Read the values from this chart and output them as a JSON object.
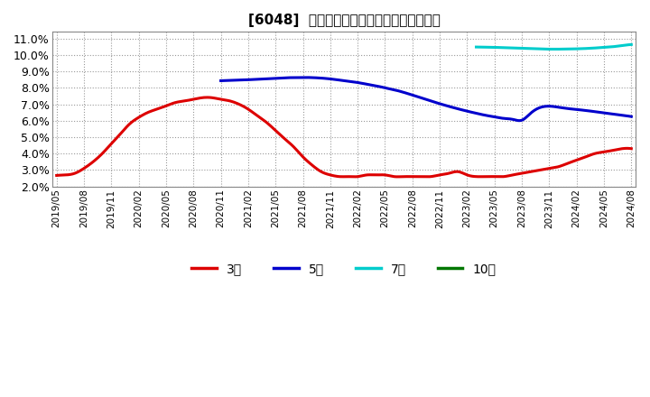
{
  "title": "[6048]  経常利益マージンの標準偏差の推移",
  "ylim": [
    0.02,
    0.114
  ],
  "yticks": [
    0.02,
    0.03,
    0.04,
    0.05,
    0.06,
    0.07,
    0.08,
    0.09,
    0.1,
    0.11
  ],
  "ytick_labels": [
    "2.0%",
    "3.0%",
    "4.0%",
    "5.0%",
    "6.0%",
    "7.0%",
    "8.0%",
    "9.0%",
    "10.0%",
    "11.0%"
  ],
  "background_color": "#ffffff",
  "plot_bg_color": "#ffffff",
  "grid_color": "#aaaaaa",
  "series": {
    "3year": {
      "color": "#dd0000",
      "label": "3年",
      "x": [
        0,
        1,
        2,
        3,
        4,
        5,
        6,
        7,
        8,
        9,
        10,
        11,
        12,
        13,
        14,
        15,
        16,
        17,
        18,
        19,
        20,
        21,
        22,
        23,
        24,
        25,
        26,
        27,
        28,
        29,
        30,
        31,
        32,
        33,
        34,
        35,
        36,
        37,
        38,
        39,
        40,
        41,
        42,
        43,
        44,
        45,
        46,
        47,
        48,
        49,
        50,
        51,
        52,
        53,
        54,
        55,
        56,
        57,
        58,
        59,
        60,
        61,
        62,
        63
      ],
      "y": [
        0.0267,
        0.027,
        0.028,
        0.031,
        0.035,
        0.04,
        0.046,
        0.052,
        0.058,
        0.062,
        0.065,
        0.067,
        0.069,
        0.071,
        0.072,
        0.073,
        0.074,
        0.074,
        0.073,
        0.072,
        0.07,
        0.067,
        0.063,
        0.059,
        0.054,
        0.049,
        0.044,
        0.038,
        0.033,
        0.029,
        0.027,
        0.026,
        0.026,
        0.026,
        0.027,
        0.027,
        0.027,
        0.026,
        0.026,
        0.026,
        0.026,
        0.026,
        0.027,
        0.028,
        0.029,
        0.027,
        0.026,
        0.026,
        0.026,
        0.026,
        0.027,
        0.028,
        0.029,
        0.03,
        0.031,
        0.032,
        0.034,
        0.036,
        0.038,
        0.04,
        0.041,
        0.042,
        0.043,
        0.043
      ]
    },
    "5year": {
      "color": "#0000cc",
      "label": "5年",
      "x": [
        18,
        19,
        20,
        21,
        22,
        23,
        24,
        25,
        26,
        27,
        28,
        29,
        30,
        31,
        32,
        33,
        34,
        35,
        36,
        37,
        38,
        39,
        40,
        41,
        42,
        43,
        44,
        45,
        46,
        47,
        48,
        49,
        50,
        51,
        52,
        53,
        54,
        55,
        56,
        57,
        58,
        59,
        60,
        61,
        62,
        63
      ],
      "y": [
        0.0843,
        0.0845,
        0.0847,
        0.0849,
        0.0852,
        0.0855,
        0.0858,
        0.0861,
        0.0862,
        0.0863,
        0.0862,
        0.0859,
        0.0854,
        0.0847,
        0.084,
        0.0832,
        0.0822,
        0.0812,
        0.08,
        0.0788,
        0.0773,
        0.0756,
        0.0738,
        0.072,
        0.0703,
        0.0687,
        0.0672,
        0.0658,
        0.0645,
        0.0633,
        0.0623,
        0.0614,
        0.0608,
        0.0603,
        0.0647,
        0.068,
        0.0688,
        0.0682,
        0.0674,
        0.0668,
        0.0662,
        0.0655,
        0.0648,
        0.064,
        0.0633,
        0.0625
      ]
    },
    "7year": {
      "color": "#00cccc",
      "label": "7年",
      "x": [
        46,
        47,
        48,
        49,
        50,
        51,
        52,
        53,
        54,
        55,
        56,
        57,
        58,
        59,
        60,
        61,
        62,
        63
      ],
      "y": [
        0.1048,
        0.1047,
        0.1046,
        0.1044,
        0.1042,
        0.104,
        0.1038,
        0.1036,
        0.1035,
        0.1035,
        0.1036,
        0.1037,
        0.1039,
        0.1042,
        0.1046,
        0.105,
        0.1057,
        0.1063
      ]
    },
    "10year": {
      "color": "#007700",
      "label": "10年",
      "x": [],
      "y": []
    }
  },
  "xtick_positions": [
    0,
    3,
    6,
    9,
    12,
    15,
    18,
    21,
    24,
    27,
    30,
    33,
    36,
    39,
    42,
    45,
    48,
    51,
    54,
    57,
    60,
    63
  ],
  "xtick_labels": [
    "2019/05",
    "2019/08",
    "2019/11",
    "2020/02",
    "2020/05",
    "2020/08",
    "2020/11",
    "2021/02",
    "2021/05",
    "2021/08",
    "2021/11",
    "2022/02",
    "2022/05",
    "2022/08",
    "2022/11",
    "2023/02",
    "2023/05",
    "2023/08",
    "2023/11",
    "2024/02",
    "2024/05",
    "2024/08"
  ],
  "legend_labels": [
    "3年",
    "5年",
    "7年",
    "10年"
  ],
  "legend_colors": [
    "#dd0000",
    "#0000cc",
    "#00cccc",
    "#007700"
  ]
}
